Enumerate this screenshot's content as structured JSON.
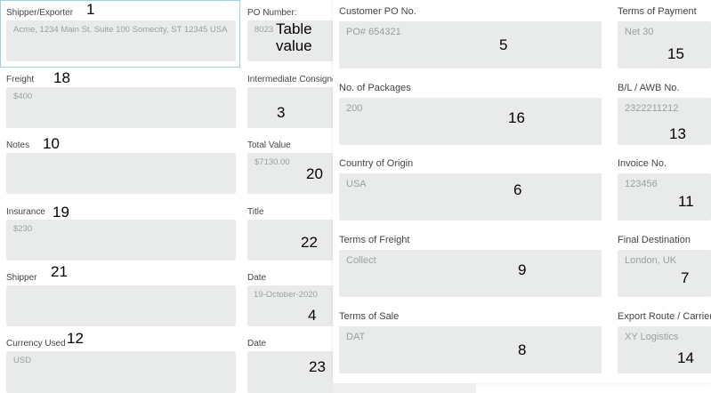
{
  "fields": {
    "shipper_exporter": {
      "label": "Shipper/Exporter",
      "value": "Acme, 1234 Main St. Suite 100 Somecity, ST 12345 USA",
      "tag": "1"
    },
    "po_number": {
      "label": "PO Number:",
      "value": "8023",
      "tag": "Table\nvalue"
    },
    "freight": {
      "label": "Freight",
      "value": "$400",
      "tag": "18"
    },
    "intermediate_consignee": {
      "label": "Intermediate Consignee",
      "value": "",
      "tag": "3"
    },
    "notes": {
      "label": "Notes",
      "value": "",
      "tag": "10"
    },
    "total_value": {
      "label": "Total Value",
      "value": "$7130.00",
      "tag": "20"
    },
    "insurance": {
      "label": "Insurance",
      "value": "$230",
      "tag": "19"
    },
    "title": {
      "label": "Title",
      "value": "",
      "tag": "22"
    },
    "shipper": {
      "label": "Shipper",
      "value": "",
      "tag": "21"
    },
    "date1": {
      "label": "Date",
      "value": "19-October-2020",
      "tag": "4"
    },
    "currency_used": {
      "label": "Currency Used",
      "value": "USD",
      "tag": "12"
    },
    "date2": {
      "label": "Date",
      "value": "",
      "tag": "23"
    },
    "customer_po": {
      "label": "Customer PO No.",
      "value": "PO# 654321",
      "tag": "5"
    },
    "no_packages": {
      "label": "No. of Packages",
      "value": "200",
      "tag": "16"
    },
    "country_origin": {
      "label": "Country of Origin",
      "value": "USA",
      "tag": "6"
    },
    "terms_freight": {
      "label": "Terms of Freight",
      "value": "Collect",
      "tag": "9"
    },
    "terms_sale": {
      "label": "Terms of Sale",
      "value": "DAT",
      "tag": "8"
    },
    "terms_payment": {
      "label": "Terms of Payment",
      "value": "Net 30",
      "tag": "15"
    },
    "bl_awb": {
      "label": "B/L / AWB No.",
      "value": "2322211212",
      "tag": "13"
    },
    "invoice_no": {
      "label": "Invoice No.",
      "value": "123456",
      "tag": "11"
    },
    "final_destination": {
      "label": "Final Destination",
      "value": "London, UK",
      "tag": "7"
    },
    "export_route": {
      "label": "Export Route / Carrier",
      "value": "XY Logistics",
      "tag": "14"
    }
  }
}
